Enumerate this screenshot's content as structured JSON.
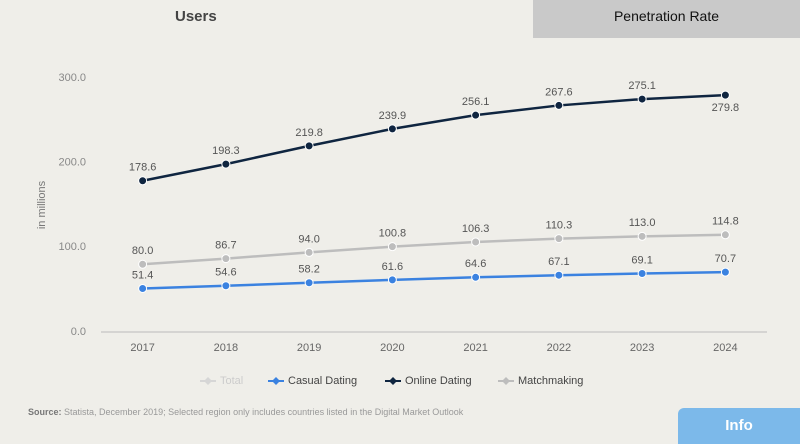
{
  "tab": "Penetration Rate",
  "heading": "Users",
  "source_label": "Source:",
  "source_text": "Statista, December 2019; Selected region only includes countries listed in the Digital Market Outlook",
  "info_button": "Info",
  "chart_data": {
    "type": "line",
    "ylabel": "in millions",
    "categories": [
      "2017",
      "2018",
      "2019",
      "2020",
      "2021",
      "2022",
      "2023",
      "2024"
    ],
    "ylim": [
      0,
      300
    ],
    "yticks": [
      {
        "value": 0,
        "label": "0.0"
      },
      {
        "value": 100,
        "label": "100.0"
      },
      {
        "value": 200,
        "label": "200.0"
      },
      {
        "value": 300,
        "label": "300.0"
      }
    ],
    "series": [
      {
        "name": "Total",
        "color": "#d6d6d6",
        "values": [
          null,
          null,
          null,
          null,
          null,
          null,
          null,
          null
        ]
      },
      {
        "name": "Casual Dating",
        "color": "#3b82e0",
        "values": [
          51.4,
          54.6,
          58.2,
          61.6,
          64.6,
          67.1,
          69.1,
          70.7
        ],
        "value_labels": [
          "51.4",
          "54.6",
          "58.2",
          "61.6",
          "64.6",
          "67.1",
          "69.1",
          "70.7"
        ]
      },
      {
        "name": "Online Dating",
        "color": "#0f2540",
        "values": [
          178.6,
          198.3,
          219.8,
          239.9,
          256.1,
          267.6,
          275.1,
          279.8
        ],
        "value_labels": [
          "178.6",
          "198.3",
          "219.8",
          "239.9",
          "256.1",
          "267.6",
          "275.1",
          "279.8"
        ]
      },
      {
        "name": "Matchmaking",
        "color": "#bdbdbd",
        "values": [
          80.0,
          86.7,
          94.0,
          100.8,
          106.3,
          110.3,
          113.0,
          114.8
        ],
        "value_labels": [
          "80.0",
          "86.7",
          "94.0",
          "100.8",
          "106.3",
          "110.3",
          "113.0",
          "114.8"
        ]
      }
    ]
  }
}
